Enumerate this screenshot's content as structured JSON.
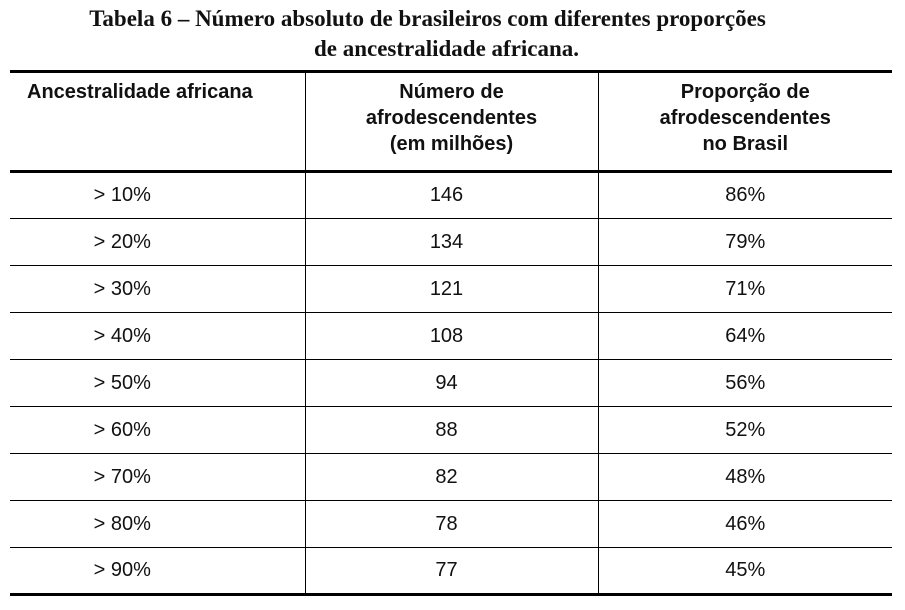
{
  "title": {
    "line1": "Tabela 6 – Número absoluto de brasileiros com diferentes proporções",
    "line2": "de ancestralidade africana."
  },
  "table": {
    "headers": [
      [
        "Ancestralidade africana"
      ],
      [
        "Número de",
        "afrodescendentes",
        "(em milhões)"
      ],
      [
        "Proporção de",
        "afrodescendentes",
        "no Brasil"
      ]
    ],
    "rows": [
      [
        "> 10%",
        "146",
        "86%"
      ],
      [
        "> 20%",
        "134",
        "79%"
      ],
      [
        "> 30%",
        "121",
        "71%"
      ],
      [
        "> 40%",
        "108",
        "64%"
      ],
      [
        "> 50%",
        "94",
        "56%"
      ],
      [
        "> 60%",
        "88",
        "52%"
      ],
      [
        "> 70%",
        "82",
        "48%"
      ],
      [
        "> 80%",
        "78",
        "46%"
      ],
      [
        "> 90%",
        "77",
        "45%"
      ]
    ]
  }
}
